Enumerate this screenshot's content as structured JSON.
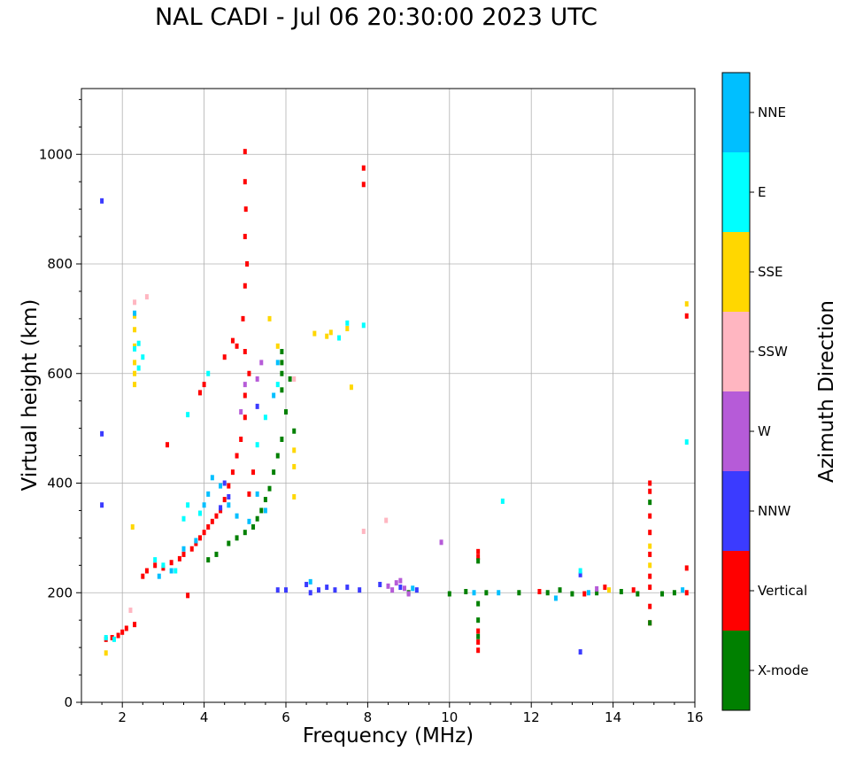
{
  "chart_data": {
    "type": "scatter",
    "title": "NAL CADI - Jul 06 20:30:00 2023 UTC",
    "xlabel": "Frequency (MHz)",
    "ylabel": "Virtual height (km)",
    "xlim": [
      1,
      16
    ],
    "ylim": [
      0,
      1120
    ],
    "xticks": [
      2,
      4,
      6,
      8,
      10,
      12,
      14,
      16
    ],
    "yticks": [
      0,
      200,
      400,
      600,
      800,
      1000
    ],
    "grid": true,
    "colorbar": {
      "label": "Azimuth Direction",
      "categories": [
        {
          "name": "X-mode",
          "color": "#008000"
        },
        {
          "name": "Vertical",
          "color": "#ff0000"
        },
        {
          "name": "NNW",
          "color": "#3b3bff"
        },
        {
          "name": "W",
          "color": "#b65bd8"
        },
        {
          "name": "SSW",
          "color": "#ffb6c1"
        },
        {
          "name": "SSE",
          "color": "#ffd700"
        },
        {
          "name": "E",
          "color": "#00ffff"
        },
        {
          "name": "NNE",
          "color": "#00bfff"
        }
      ]
    },
    "series": [
      {
        "name": "Vertical",
        "points": [
          [
            1.6,
            115
          ],
          [
            1.75,
            118
          ],
          [
            1.9,
            122
          ],
          [
            2.0,
            128
          ],
          [
            2.1,
            135
          ],
          [
            2.3,
            142
          ],
          [
            2.5,
            230
          ],
          [
            2.6,
            240
          ],
          [
            2.8,
            250
          ],
          [
            3.0,
            245
          ],
          [
            3.2,
            255
          ],
          [
            3.4,
            262
          ],
          [
            3.5,
            270
          ],
          [
            3.7,
            280
          ],
          [
            3.8,
            290
          ],
          [
            3.9,
            300
          ],
          [
            4.0,
            310
          ],
          [
            4.1,
            320
          ],
          [
            4.2,
            330
          ],
          [
            4.3,
            340
          ],
          [
            4.4,
            350
          ],
          [
            4.5,
            370
          ],
          [
            4.6,
            395
          ],
          [
            4.7,
            420
          ],
          [
            4.8,
            450
          ],
          [
            4.9,
            480
          ],
          [
            5.0,
            520
          ],
          [
            5.0,
            560
          ],
          [
            5.1,
            600
          ],
          [
            5.0,
            640
          ],
          [
            4.95,
            700
          ],
          [
            5.0,
            760
          ],
          [
            5.05,
            800
          ],
          [
            5.0,
            850
          ],
          [
            5.02,
            900
          ],
          [
            5.0,
            950
          ],
          [
            5.0,
            1005
          ],
          [
            3.9,
            565
          ],
          [
            4.0,
            580
          ],
          [
            4.5,
            630
          ],
          [
            4.7,
            660
          ],
          [
            4.8,
            650
          ],
          [
            3.1,
            470
          ],
          [
            5.1,
            380
          ],
          [
            5.2,
            420
          ],
          [
            3.6,
            195
          ],
          [
            7.9,
            945
          ],
          [
            7.9,
            975
          ],
          [
            10.7,
            95
          ],
          [
            10.7,
            110
          ],
          [
            10.7,
            130
          ],
          [
            10.7,
            275
          ],
          [
            10.7,
            265
          ],
          [
            12.2,
            202
          ],
          [
            13.3,
            198
          ],
          [
            13.8,
            210
          ],
          [
            14.5,
            205
          ],
          [
            14.9,
            145
          ],
          [
            14.9,
            175
          ],
          [
            14.9,
            210
          ],
          [
            14.9,
            230
          ],
          [
            14.9,
            270
          ],
          [
            14.9,
            310
          ],
          [
            14.9,
            340
          ],
          [
            14.9,
            385
          ],
          [
            14.9,
            400
          ],
          [
            15.8,
            200
          ],
          [
            15.8,
            245
          ],
          [
            15.8,
            705
          ]
        ]
      },
      {
        "name": "X-mode",
        "points": [
          [
            4.1,
            260
          ],
          [
            4.3,
            270
          ],
          [
            4.6,
            290
          ],
          [
            4.8,
            300
          ],
          [
            5.0,
            310
          ],
          [
            5.2,
            320
          ],
          [
            5.3,
            335
          ],
          [
            5.4,
            350
          ],
          [
            5.5,
            370
          ],
          [
            5.6,
            390
          ],
          [
            5.7,
            420
          ],
          [
            5.8,
            450
          ],
          [
            5.9,
            480
          ],
          [
            6.0,
            530
          ],
          [
            5.9,
            570
          ],
          [
            5.9,
            600
          ],
          [
            5.9,
            620
          ],
          [
            5.9,
            640
          ],
          [
            6.1,
            590
          ],
          [
            6.2,
            495
          ],
          [
            9.0,
            200
          ],
          [
            10.0,
            198
          ],
          [
            10.4,
            202
          ],
          [
            10.7,
            120
          ],
          [
            10.7,
            150
          ],
          [
            10.7,
            180
          ],
          [
            10.7,
            258
          ],
          [
            10.9,
            200
          ],
          [
            11.7,
            200
          ],
          [
            12.4,
            200
          ],
          [
            12.7,
            205
          ],
          [
            13.0,
            198
          ],
          [
            13.6,
            200
          ],
          [
            14.2,
            202
          ],
          [
            14.6,
            198
          ],
          [
            14.9,
            145
          ],
          [
            14.9,
            365
          ],
          [
            15.2,
            198
          ],
          [
            15.5,
            200
          ]
        ]
      },
      {
        "name": "NNW",
        "points": [
          [
            1.5,
            360
          ],
          [
            1.5,
            490
          ],
          [
            1.5,
            915
          ],
          [
            5.8,
            205
          ],
          [
            6.0,
            205
          ],
          [
            6.5,
            215
          ],
          [
            6.6,
            200
          ],
          [
            6.8,
            205
          ],
          [
            7.0,
            210
          ],
          [
            7.2,
            205
          ],
          [
            7.5,
            210
          ],
          [
            7.8,
            205
          ],
          [
            8.3,
            215
          ],
          [
            8.8,
            210
          ],
          [
            9.2,
            205
          ],
          [
            13.2,
            92
          ],
          [
            13.2,
            233
          ],
          [
            4.4,
            355
          ],
          [
            4.6,
            375
          ],
          [
            5.3,
            540
          ],
          [
            4.5,
            400
          ]
        ]
      },
      {
        "name": "W",
        "points": [
          [
            8.5,
            212
          ],
          [
            8.6,
            205
          ],
          [
            8.7,
            218
          ],
          [
            8.8,
            222
          ],
          [
            8.9,
            208
          ],
          [
            9.0,
            198
          ],
          [
            9.8,
            292
          ],
          [
            13.6,
            207
          ],
          [
            4.9,
            530
          ],
          [
            5.0,
            580
          ],
          [
            5.3,
            590
          ],
          [
            5.4,
            620
          ]
        ]
      },
      {
        "name": "SSW",
        "points": [
          [
            2.3,
            730
          ],
          [
            2.6,
            740
          ],
          [
            6.2,
            590
          ],
          [
            8.45,
            332
          ],
          [
            7.9,
            312
          ],
          [
            2.2,
            168
          ]
        ]
      },
      {
        "name": "SSE",
        "points": [
          [
            1.6,
            90
          ],
          [
            2.25,
            320
          ],
          [
            2.3,
            580
          ],
          [
            2.3,
            600
          ],
          [
            2.3,
            620
          ],
          [
            2.3,
            650
          ],
          [
            2.3,
            680
          ],
          [
            2.3,
            705
          ],
          [
            6.7,
            673
          ],
          [
            7.1,
            675
          ],
          [
            7.0,
            668
          ],
          [
            7.5,
            682
          ],
          [
            6.2,
            375
          ],
          [
            6.2,
            430
          ],
          [
            6.2,
            460
          ],
          [
            5.6,
            700
          ],
          [
            5.8,
            650
          ],
          [
            7.6,
            575
          ],
          [
            13.9,
            205
          ],
          [
            14.9,
            250
          ],
          [
            14.9,
            285
          ],
          [
            15.8,
            727
          ]
        ]
      },
      {
        "name": "E",
        "points": [
          [
            1.6,
            118
          ],
          [
            1.8,
            115
          ],
          [
            2.3,
            645
          ],
          [
            2.4,
            655
          ],
          [
            2.4,
            610
          ],
          [
            2.5,
            630
          ],
          [
            2.8,
            260
          ],
          [
            3.0,
            250
          ],
          [
            3.3,
            240
          ],
          [
            3.5,
            335
          ],
          [
            3.6,
            360
          ],
          [
            3.6,
            525
          ],
          [
            3.9,
            345
          ],
          [
            4.1,
            600
          ],
          [
            5.3,
            470
          ],
          [
            5.5,
            520
          ],
          [
            5.8,
            580
          ],
          [
            7.3,
            665
          ],
          [
            7.5,
            692
          ],
          [
            7.9,
            688
          ],
          [
            11.3,
            367
          ],
          [
            13.2,
            240
          ],
          [
            15.8,
            475
          ]
        ]
      },
      {
        "name": "NNE",
        "points": [
          [
            2.3,
            710
          ],
          [
            3.8,
            295
          ],
          [
            4.0,
            360
          ],
          [
            4.1,
            380
          ],
          [
            4.2,
            410
          ],
          [
            4.4,
            395
          ],
          [
            4.6,
            360
          ],
          [
            4.8,
            340
          ],
          [
            5.1,
            330
          ],
          [
            5.3,
            380
          ],
          [
            5.5,
            350
          ],
          [
            5.7,
            560
          ],
          [
            5.8,
            620
          ],
          [
            3.2,
            240
          ],
          [
            2.9,
            230
          ],
          [
            3.5,
            280
          ],
          [
            6.6,
            220
          ],
          [
            9.1,
            208
          ],
          [
            10.6,
            200
          ],
          [
            11.2,
            200
          ],
          [
            12.6,
            190
          ],
          [
            13.4,
            200
          ],
          [
            15.7,
            205
          ]
        ]
      }
    ]
  }
}
